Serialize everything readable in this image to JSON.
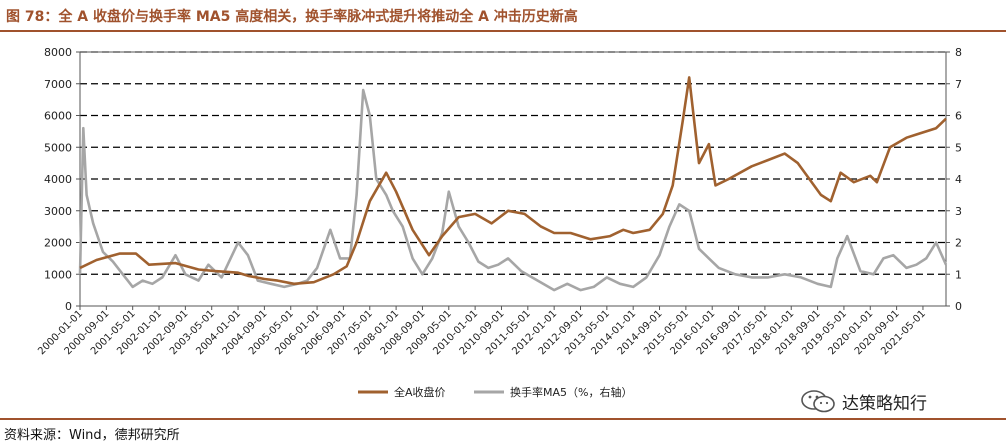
{
  "header": {
    "title": "图 78：全 A 收盘价与换手率 MA5 高度相关，换手率脉冲式提升将推动全 A 冲击历史新高"
  },
  "footer": {
    "source": "资料来源：Wind，德邦研究所",
    "watermark_text": "达策略知行",
    "watermark_icon": "wechat-icon"
  },
  "colors": {
    "price": "#a0612f",
    "turnover": "#a6a6a6",
    "title": "#a0522d"
  },
  "chart_data": {
    "type": "line",
    "title": "",
    "x_axis_labels": [
      "2000-01-01",
      "2000-09-01",
      "2001-05-01",
      "2002-01-01",
      "2002-09-01",
      "2003-05-01",
      "2004-01-01",
      "2004-09-01",
      "2005-05-01",
      "2006-01-01",
      "2006-09-01",
      "2007-05-01",
      "2008-01-01",
      "2008-09-01",
      "2009-05-01",
      "2010-01-01",
      "2010-09-01",
      "2011-05-01",
      "2012-01-01",
      "2012-09-01",
      "2013-05-01",
      "2014-01-01",
      "2014-09-01",
      "2015-05-01",
      "2016-01-01",
      "2016-09-01",
      "2017-05-01",
      "2018-01-01",
      "2018-09-01",
      "2019-05-01",
      "2020-01-01",
      "2020-09-01",
      "2021-05-01"
    ],
    "y_left": {
      "min": 0,
      "max": 8000,
      "ticks": [
        "0",
        "1000",
        "2000",
        "3000",
        "4000",
        "5000",
        "6000",
        "7000",
        "8000"
      ]
    },
    "y_right": {
      "min": 0,
      "max": 8,
      "ticks": [
        "0",
        "1",
        "2",
        "3",
        "4",
        "5",
        "6",
        "7",
        "8"
      ]
    },
    "grid": "horizontal dashed",
    "legend_position": "bottom",
    "series": [
      {
        "name": "全A收盘价",
        "axis": "left",
        "x": [
          "2000-01",
          "2000-06",
          "2001-01",
          "2001-06",
          "2001-10",
          "2002-06",
          "2003-01",
          "2003-06",
          "2004-01",
          "2004-04",
          "2004-09",
          "2005-01",
          "2005-06",
          "2005-12",
          "2006-06",
          "2006-10",
          "2007-01",
          "2007-05",
          "2007-10",
          "2008-01",
          "2008-06",
          "2008-11",
          "2009-03",
          "2009-08",
          "2010-01",
          "2010-06",
          "2010-11",
          "2011-04",
          "2011-09",
          "2012-01",
          "2012-06",
          "2012-12",
          "2013-06",
          "2013-10",
          "2014-01",
          "2014-06",
          "2014-10",
          "2015-01",
          "2015-04",
          "2015-06",
          "2015-09",
          "2015-12",
          "2016-02",
          "2016-06",
          "2017-01",
          "2017-06",
          "2017-11",
          "2018-03",
          "2018-10",
          "2019-01",
          "2019-04",
          "2019-08",
          "2020-01",
          "2020-03",
          "2020-07",
          "2020-12",
          "2021-03",
          "2021-09",
          "2021-12"
        ],
        "y": [
          1200,
          1450,
          1650,
          1650,
          1300,
          1350,
          1150,
          1100,
          1050,
          950,
          850,
          800,
          700,
          750,
          1000,
          1250,
          2000,
          3300,
          4200,
          3600,
          2400,
          1600,
          2200,
          2800,
          2900,
          2600,
          3000,
          2900,
          2500,
          2300,
          2300,
          2100,
          2200,
          2400,
          2300,
          2400,
          2900,
          3800,
          5800,
          7200,
          4500,
          5100,
          3800,
          4000,
          4400,
          4600,
          4800,
          4500,
          3500,
          3300,
          4200,
          3900,
          4100,
          3900,
          5000,
          5300,
          5400,
          5600,
          5900
        ]
      },
      {
        "name": "换手率MA5（%，右轴）",
        "axis": "right",
        "x": [
          "2000-01",
          "2000-02",
          "2000-03",
          "2000-05",
          "2000-08",
          "2000-11",
          "2001-02",
          "2001-05",
          "2001-08",
          "2001-11",
          "2002-02",
          "2002-06",
          "2002-09",
          "2003-01",
          "2003-04",
          "2003-08",
          "2004-01",
          "2004-04",
          "2004-07",
          "2004-11",
          "2005-03",
          "2005-07",
          "2005-10",
          "2006-01",
          "2006-05",
          "2006-08",
          "2006-11",
          "2007-01",
          "2007-03",
          "2007-05",
          "2007-07",
          "2007-10",
          "2007-12",
          "2008-03",
          "2008-06",
          "2008-09",
          "2008-12",
          "2009-03",
          "2009-05",
          "2009-08",
          "2009-11",
          "2010-02",
          "2010-05",
          "2010-08",
          "2010-11",
          "2011-03",
          "2011-08",
          "2012-01",
          "2012-05",
          "2012-09",
          "2013-01",
          "2013-05",
          "2013-09",
          "2014-01",
          "2014-05",
          "2014-09",
          "2014-12",
          "2015-03",
          "2015-06",
          "2015-09",
          "2015-12",
          "2016-03",
          "2016-08",
          "2017-01",
          "2017-06",
          "2017-11",
          "2018-04",
          "2018-09",
          "2019-01",
          "2019-03",
          "2019-06",
          "2019-10",
          "2020-02",
          "2020-05",
          "2020-08",
          "2020-12",
          "2021-03",
          "2021-06",
          "2021-09",
          "2021-12"
        ],
        "y": [
          1.0,
          5.6,
          3.5,
          2.6,
          1.7,
          1.4,
          1.0,
          0.6,
          0.8,
          0.7,
          0.9,
          1.6,
          1.0,
          0.8,
          1.3,
          0.9,
          2.0,
          1.6,
          0.8,
          0.7,
          0.6,
          0.7,
          0.8,
          1.2,
          2.4,
          1.5,
          1.5,
          3.5,
          6.8,
          6.0,
          4.0,
          3.5,
          3.0,
          2.5,
          1.5,
          1.0,
          1.5,
          2.3,
          3.6,
          2.5,
          2.0,
          1.4,
          1.2,
          1.3,
          1.5,
          1.1,
          0.8,
          0.5,
          0.7,
          0.5,
          0.6,
          0.9,
          0.7,
          0.6,
          0.9,
          1.6,
          2.5,
          3.2,
          3.0,
          1.8,
          1.5,
          1.2,
          1.0,
          0.9,
          0.9,
          1.0,
          0.9,
          0.7,
          0.6,
          1.5,
          2.2,
          1.1,
          1.0,
          1.5,
          1.6,
          1.2,
          1.3,
          1.5,
          2.0,
          1.3
        ]
      }
    ]
  }
}
